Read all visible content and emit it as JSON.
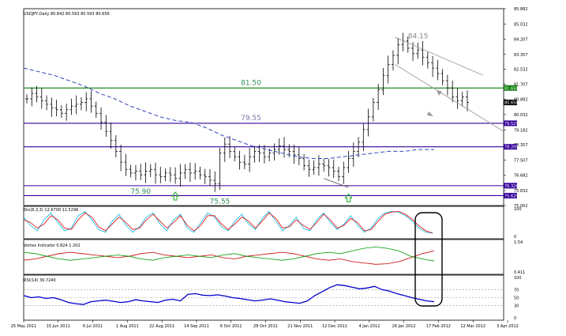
{
  "chart_data": {
    "type": "line",
    "title": "USDJPY,Daily  80.842 80.593 80.593 80.656",
    "x_tick_labels": [
      "25 May 2011",
      "15 Jun 2011",
      "6 Jul 2011",
      "1 Aug 2011",
      "22 Aug 2011",
      "14 Sep 2011",
      "6 Oct 2011",
      "28 Oct 2011",
      "21 Nov 2011",
      "12 Dec 2011",
      "4 Jan 2012",
      "26 Jan 2012",
      "17 Feb 2012",
      "12 Mar 2012",
      "3 Apr 2012"
    ],
    "price": {
      "ylim": [
        75.002,
        85.882
      ],
      "y_tick_labels": [
        "85.882",
        "85.032",
        "84.207",
        "83.357",
        "82.532",
        "81.707",
        "80.882",
        "80.032",
        "79.182",
        "78.357",
        "77.507",
        "76.682",
        "75.832",
        "75.002"
      ],
      "series": [
        {
          "kind": "bars",
          "close": [
            80.9,
            81.2,
            81.0,
            80.8,
            80.6,
            80.4,
            80.3,
            80.1,
            80.3,
            80.5,
            80.6,
            80.7,
            80.9,
            80.5,
            80.1,
            79.6,
            79.1,
            78.6,
            78.0,
            77.4,
            77.0,
            76.8,
            76.9,
            76.7,
            76.9,
            77.0,
            76.7,
            76.6,
            76.8,
            76.7,
            76.5,
            76.8,
            77.0,
            76.8,
            76.9,
            76.7,
            76.6,
            76.4,
            76.2,
            77.9,
            78.4,
            78.0,
            77.7,
            77.4,
            77.3,
            77.7,
            78.0,
            77.9,
            77.7,
            77.9,
            78.1,
            78.3,
            78.1,
            78.0,
            77.8,
            77.6,
            77.2,
            77.0,
            77.1,
            77.3,
            77.2,
            77.1,
            76.9,
            76.6,
            77.1,
            77.6,
            78.0,
            78.5,
            79.2,
            79.9,
            80.7,
            81.4,
            82.2,
            82.8,
            83.3,
            83.9,
            84.1,
            83.7,
            83.4,
            83.6,
            83.2,
            82.9,
            82.6,
            82.3,
            81.9,
            81.5,
            81.0,
            80.8,
            81.0,
            80.7
          ]
        },
        {
          "name": "",
          "kind": "moving_average",
          "values": [
            82.6,
            82.4,
            82.2,
            81.9,
            81.6,
            81.2,
            80.9,
            80.5,
            80.2,
            79.9,
            79.7,
            79.6,
            79.3,
            78.9,
            78.6,
            78.3,
            78.1,
            77.9,
            77.7,
            77.6,
            77.6,
            77.7,
            77.8,
            77.9,
            78.0,
            78.0,
            78.1,
            78.1
          ]
        }
      ],
      "levels": [
        {
          "value": 81.5,
          "label": "81.50",
          "color": "#0a7d0a",
          "tag": "81.650"
        },
        {
          "value": 79.55,
          "label": "79.55",
          "color": "#330099",
          "tag": "79.529"
        },
        {
          "value": 78.25,
          "label": "",
          "color": "#330099",
          "tag": "78.200"
        },
        {
          "value": 76.1,
          "label": "",
          "color": "#330099",
          "tag": "76.326"
        },
        {
          "value": 75.55,
          "label": "",
          "color": "#330099",
          "tag": "75.620"
        }
      ],
      "current_tag": "80.656",
      "annotations": [
        "84.15",
        "81.50",
        "79.55",
        "75.90",
        "75.55"
      ],
      "markers": [
        "up-arrow",
        "up-arrow"
      ]
    },
    "stochastic": {
      "label": "Sto(8,3,3) 12.6700 11.5296",
      "ylim": [
        0,
        100
      ],
      "y_tick_labels": [
        "100",
        "0"
      ],
      "series": [
        {
          "name": "",
          "color": "#00b8e6",
          "values": [
            70,
            40,
            20,
            60,
            85,
            50,
            20,
            30,
            75,
            90,
            60,
            25,
            15,
            55,
            80,
            40,
            15,
            35,
            70,
            85,
            45,
            20,
            60,
            80,
            30,
            15,
            50,
            85,
            70,
            35,
            20,
            55,
            80,
            45,
            25,
            65,
            90,
            55,
            20,
            40,
            70,
            30,
            20,
            60,
            85,
            50,
            25,
            45,
            75,
            40,
            15,
            30,
            65,
            85,
            90,
            88,
            75,
            55,
            30,
            15,
            12
          ]
        },
        {
          "name": "",
          "color": "#e00000",
          "values": [
            60,
            50,
            30,
            45,
            75,
            60,
            30,
            25,
            60,
            85,
            70,
            35,
            20,
            45,
            70,
            50,
            25,
            30,
            60,
            80,
            55,
            30,
            50,
            75,
            40,
            20,
            40,
            75,
            75,
            45,
            25,
            45,
            70,
            55,
            30,
            55,
            85,
            65,
            30,
            35,
            60,
            40,
            25,
            50,
            80,
            60,
            30,
            40,
            65,
            50,
            20,
            25,
            55,
            80,
            88,
            90,
            80,
            62,
            38,
            20,
            12
          ]
        }
      ]
    },
    "vortex": {
      "label": "Vortex Indicator 0.824 1.202",
      "ylim": [
        0.411,
        1.54
      ],
      "y_tick_labels": [
        "1.54",
        "0.411"
      ],
      "series": [
        {
          "name": "",
          "color": "#cc0000",
          "values": [
            0.85,
            0.9,
            1.0,
            1.1,
            1.15,
            1.1,
            1.05,
            1.0,
            0.95,
            1.0,
            1.1,
            1.15,
            1.05,
            1.0,
            0.95,
            1.0,
            1.05,
            0.95,
            0.9,
            1.0,
            1.05,
            1.1,
            1.15,
            1.1,
            1.0,
            0.9,
            0.85,
            0.9,
            0.8,
            0.75,
            0.7,
            0.72,
            0.8,
            0.95,
            1.1,
            1.2
          ]
        },
        {
          "name": "",
          "color": "#009900",
          "values": [
            1.15,
            1.1,
            1.0,
            0.9,
            0.85,
            0.9,
            0.95,
            1.0,
            1.05,
            1.0,
            0.9,
            0.85,
            0.95,
            1.0,
            1.05,
            1.0,
            0.95,
            1.05,
            1.1,
            1.0,
            0.95,
            0.9,
            0.85,
            0.9,
            1.0,
            1.1,
            1.15,
            1.1,
            1.2,
            1.3,
            1.35,
            1.3,
            1.2,
            1.0,
            0.9,
            0.82
          ]
        }
      ]
    },
    "rsi": {
      "label": "RSI(14) 39.7240",
      "ylim": [
        0,
        100
      ],
      "y_tick_labels": [
        "100",
        "70",
        "50",
        "30",
        "0"
      ],
      "levels": [
        70,
        50,
        30
      ],
      "series": [
        {
          "name": "",
          "color": "#0000cc",
          "values": [
            55,
            50,
            52,
            48,
            50,
            45,
            38,
            35,
            33,
            40,
            42,
            44,
            41,
            38,
            40,
            45,
            42,
            40,
            38,
            44,
            46,
            42,
            58,
            60,
            56,
            55,
            57,
            54,
            50,
            48,
            45,
            42,
            44,
            47,
            44,
            40,
            38,
            36,
            42,
            55,
            65,
            75,
            82,
            80,
            76,
            72,
            74,
            78,
            70,
            66,
            60,
            55,
            50,
            46,
            42,
            40
          ]
        }
      ]
    },
    "highlight_box": "rounded-rectangle"
  }
}
